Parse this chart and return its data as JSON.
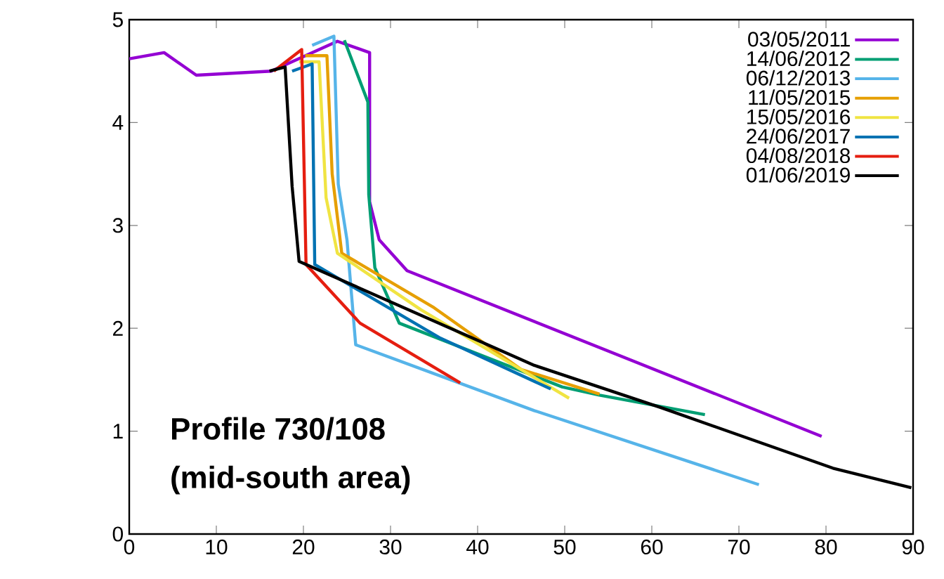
{
  "chart_data": {
    "type": "line",
    "xlim": [
      0,
      90
    ],
    "ylim": [
      0,
      5
    ],
    "xticks": [
      0,
      10,
      20,
      30,
      40,
      50,
      60,
      70,
      80,
      90
    ],
    "yticks": [
      0,
      1,
      2,
      3,
      4,
      5
    ],
    "legend": "top right",
    "grid": false,
    "marker": "none",
    "line_style": "solid",
    "annotations": [
      "Profile 730/108",
      "(mid-south area)"
    ],
    "series": [
      {
        "name": "03/05/2011",
        "color": "#9400d3",
        "x": [
          0,
          4.0,
          7.7,
          16.3,
          23.9,
          27.6,
          27.6,
          28.7,
          31.9,
          79.5
        ],
        "values": [
          4.62,
          4.68,
          4.46,
          4.5,
          4.79,
          4.68,
          3.23,
          2.86,
          2.56,
          0.95
        ]
      },
      {
        "name": "14/06/2012",
        "color": "#009e73",
        "x": [
          24.7,
          27.4,
          27.5,
          28.2,
          31,
          49.7,
          54,
          66.1
        ],
        "values": [
          4.8,
          4.2,
          3.3,
          2.59,
          2.05,
          1.43,
          1.35,
          1.16
        ]
      },
      {
        "name": "06/12/2013",
        "color": "#56b4e9",
        "x": [
          21,
          23.5,
          24,
          25,
          26,
          46.5,
          72.3
        ],
        "values": [
          4.75,
          4.84,
          3.4,
          2.86,
          1.84,
          1.2,
          0.48
        ]
      },
      {
        "name": "11/05/2015",
        "color": "#e69f00",
        "x": [
          20.2,
          22.7,
          23.3,
          24.4,
          35,
          45,
          54
        ],
        "values": [
          4.65,
          4.65,
          3.5,
          2.73,
          2.2,
          1.6,
          1.36
        ]
      },
      {
        "name": "15/05/2016",
        "color": "#f0e442",
        "x": [
          19.5,
          21.8,
          22.6,
          23.9,
          33.5,
          50.5
        ],
        "values": [
          4.59,
          4.59,
          3.27,
          2.73,
          2.18,
          1.32
        ]
      },
      {
        "name": "24/06/2017",
        "color": "#0072b2",
        "x": [
          18.7,
          21,
          21.3,
          35.6,
          48.4
        ],
        "values": [
          4.5,
          4.57,
          2.62,
          1.91,
          1.41
        ]
      },
      {
        "name": "04/08/2018",
        "color": "#e51e10",
        "x": [
          16.6,
          19.8,
          20.3,
          26.5,
          38
        ],
        "values": [
          4.5,
          4.71,
          2.62,
          2.05,
          1.47
        ]
      },
      {
        "name": "01/06/2019",
        "color": "#000000",
        "x": [
          16.1,
          17.9,
          18.7,
          19.5,
          46.5,
          61,
          80.8,
          89.8
        ],
        "values": [
          4.5,
          4.54,
          3.38,
          2.65,
          1.64,
          1.23,
          0.64,
          0.45
        ]
      }
    ]
  }
}
